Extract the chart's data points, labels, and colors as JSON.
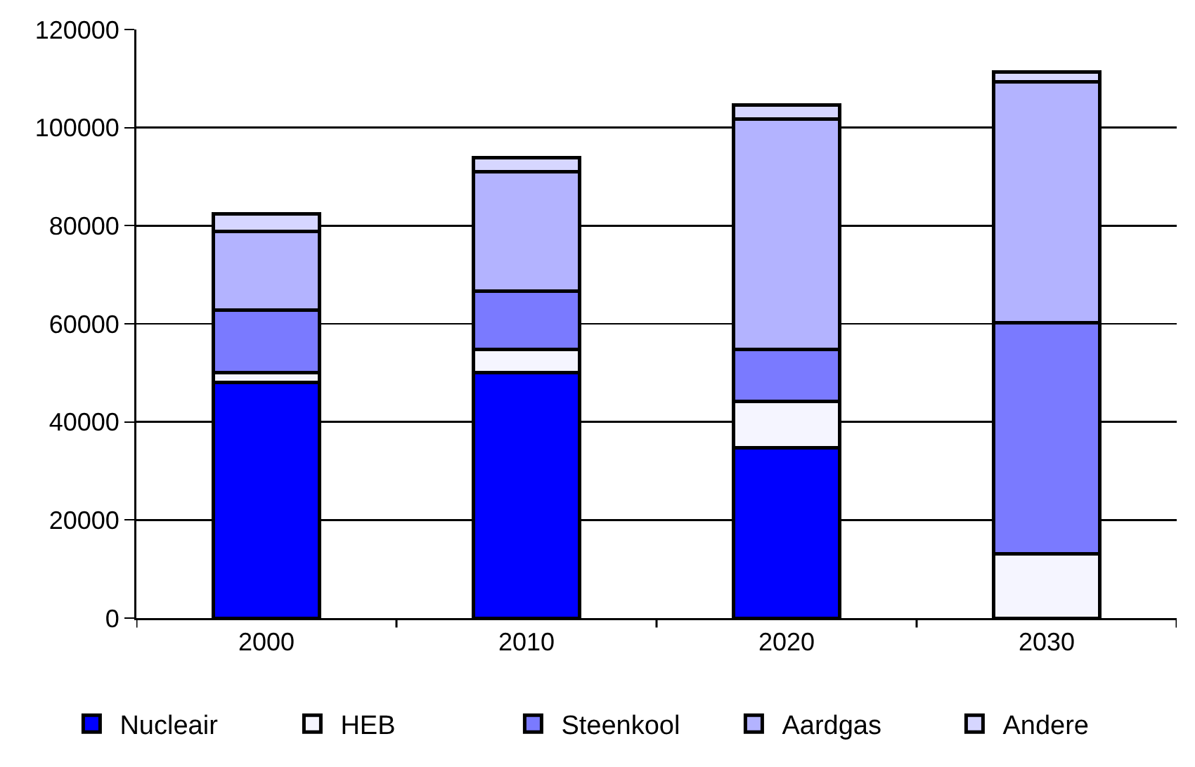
{
  "chart_data": {
    "type": "bar",
    "stacked": true,
    "categories": [
      "2000",
      "2010",
      "2020",
      "2030"
    ],
    "series": [
      {
        "name": "Nucleair",
        "color": "#0000ff",
        "values": [
          48000,
          50000,
          34700,
          0
        ]
      },
      {
        "name": "HEB",
        "color": "#f5f5ff",
        "values": [
          2000,
          4800,
          9500,
          13100
        ]
      },
      {
        "name": "Steenkool",
        "color": "#7a7aff",
        "values": [
          12800,
          11900,
          10600,
          47100
        ]
      },
      {
        "name": "Aardgas",
        "color": "#b3b3ff",
        "values": [
          16000,
          24300,
          46900,
          49100
        ]
      },
      {
        "name": "Andere",
        "color": "#d6d6ff",
        "values": [
          3600,
          2900,
          2900,
          2000
        ]
      }
    ],
    "ylim": [
      0,
      120000
    ],
    "yticks": [
      0,
      20000,
      40000,
      60000,
      80000,
      100000,
      120000
    ],
    "grid": "y",
    "legend": "bottom"
  }
}
